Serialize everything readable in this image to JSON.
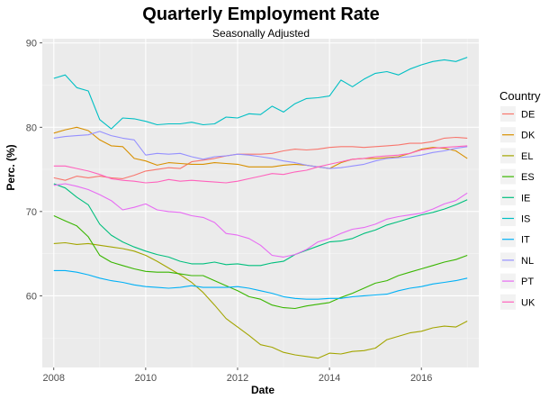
{
  "chart_data": {
    "type": "line",
    "title": "Quarterly Employment Rate",
    "subtitle": "Seasonally Adjusted",
    "xlabel": "Date",
    "ylabel": "Perc. (%)",
    "xlim": [
      2007.75,
      2017.25
    ],
    "ylim": [
      51.5,
      90.5
    ],
    "x_ticks": [
      2008,
      2010,
      2012,
      2014,
      2016
    ],
    "x_tick_labels": [
      "2008",
      "2010",
      "2012",
      "2014",
      "2016"
    ],
    "y_ticks": [
      60,
      70,
      80,
      90
    ],
    "y_tick_labels": [
      "60",
      "70",
      "80",
      "90"
    ],
    "grid": true,
    "legend": {
      "title": "Country",
      "position": "right"
    },
    "x": [
      2008.0,
      2008.25,
      2008.5,
      2008.75,
      2009.0,
      2009.25,
      2009.5,
      2009.75,
      2010.0,
      2010.25,
      2010.5,
      2010.75,
      2011.0,
      2011.25,
      2011.5,
      2011.75,
      2012.0,
      2012.25,
      2012.5,
      2012.75,
      2013.0,
      2013.25,
      2013.5,
      2013.75,
      2014.0,
      2014.25,
      2014.5,
      2014.75,
      2015.0,
      2015.25,
      2015.5,
      2015.75,
      2016.0,
      2016.25,
      2016.5,
      2016.75,
      2017.0
    ],
    "series": [
      {
        "name": "DE",
        "color": "#F8766D",
        "values": [
          74.0,
          73.7,
          74.2,
          74.0,
          74.2,
          74.0,
          73.9,
          74.3,
          74.8,
          75.0,
          75.2,
          75.1,
          75.9,
          76.1,
          76.3,
          76.6,
          76.8,
          76.8,
          76.8,
          76.9,
          77.2,
          77.4,
          77.3,
          77.4,
          77.6,
          77.7,
          77.7,
          77.6,
          77.7,
          77.8,
          77.9,
          78.1,
          78.1,
          78.3,
          78.7,
          78.8,
          78.7
        ]
      },
      {
        "name": "DK",
        "color": "#D89000",
        "values": [
          79.3,
          79.7,
          80.0,
          79.6,
          78.5,
          77.8,
          77.7,
          76.3,
          76.0,
          75.5,
          75.8,
          75.7,
          75.6,
          75.6,
          75.8,
          75.7,
          75.6,
          75.3,
          75.3,
          75.3,
          75.5,
          75.6,
          75.5,
          75.3,
          75.1,
          75.8,
          76.2,
          76.3,
          76.3,
          76.4,
          76.5,
          76.9,
          77.4,
          77.6,
          77.5,
          77.2,
          76.3
        ]
      },
      {
        "name": "EL",
        "color": "#A3A500",
        "values": [
          66.2,
          66.3,
          66.1,
          66.2,
          66.0,
          65.8,
          65.6,
          65.3,
          64.8,
          64.1,
          63.3,
          62.5,
          61.6,
          60.4,
          58.9,
          57.3,
          56.3,
          55.3,
          54.2,
          53.9,
          53.3,
          53.0,
          52.8,
          52.6,
          53.2,
          53.1,
          53.4,
          53.5,
          53.8,
          54.8,
          55.2,
          55.6,
          55.8,
          56.2,
          56.4,
          56.3,
          57.0
        ]
      },
      {
        "name": "ES",
        "color": "#39B600",
        "values": [
          69.5,
          68.9,
          68.3,
          67.0,
          64.8,
          64.0,
          63.6,
          63.2,
          62.9,
          62.8,
          62.8,
          62.6,
          62.4,
          62.4,
          61.8,
          61.2,
          60.6,
          59.9,
          59.6,
          58.9,
          58.6,
          58.5,
          58.8,
          59.0,
          59.2,
          59.8,
          60.3,
          60.9,
          61.5,
          61.8,
          62.4,
          62.8,
          63.2,
          63.6,
          64.0,
          64.3,
          64.8
        ]
      },
      {
        "name": "IE",
        "color": "#00BF7D",
        "values": [
          73.3,
          72.8,
          71.7,
          70.8,
          68.5,
          67.2,
          66.4,
          65.8,
          65.3,
          64.9,
          64.6,
          64.1,
          63.8,
          63.8,
          64.0,
          63.7,
          63.8,
          63.6,
          63.6,
          63.9,
          64.1,
          64.9,
          65.4,
          65.9,
          66.4,
          66.5,
          66.8,
          67.4,
          67.8,
          68.4,
          68.8,
          69.2,
          69.6,
          69.9,
          70.3,
          70.8,
          71.4
        ]
      },
      {
        "name": "IS",
        "color": "#00BFC4",
        "values": [
          85.8,
          86.2,
          84.7,
          84.3,
          80.9,
          79.8,
          81.1,
          81.0,
          80.7,
          80.3,
          80.4,
          80.4,
          80.6,
          80.3,
          80.4,
          81.2,
          81.1,
          81.6,
          81.5,
          82.5,
          81.8,
          82.8,
          83.4,
          83.5,
          83.7,
          85.6,
          84.8,
          85.7,
          86.4,
          86.6,
          86.2,
          86.9,
          87.4,
          87.8,
          88.0,
          87.8,
          88.3
        ]
      },
      {
        "name": "IT",
        "color": "#00B0F6",
        "values": [
          63.0,
          63.0,
          62.8,
          62.5,
          62.1,
          61.8,
          61.6,
          61.3,
          61.1,
          61.0,
          60.9,
          61.0,
          61.2,
          61.0,
          61.0,
          61.0,
          61.1,
          60.9,
          60.6,
          60.3,
          59.9,
          59.7,
          59.6,
          59.6,
          59.7,
          59.7,
          59.9,
          60.0,
          60.1,
          60.2,
          60.6,
          60.9,
          61.1,
          61.4,
          61.6,
          61.8,
          62.1
        ]
      },
      {
        "name": "NL",
        "color": "#9590FF",
        "values": [
          78.7,
          78.9,
          79.0,
          79.1,
          79.5,
          79.0,
          78.7,
          78.5,
          76.7,
          76.9,
          76.8,
          76.9,
          76.5,
          76.2,
          76.5,
          76.6,
          76.8,
          76.7,
          76.5,
          76.3,
          76.0,
          75.8,
          75.5,
          75.3,
          75.1,
          75.2,
          75.4,
          75.6,
          76.0,
          76.3,
          76.4,
          76.5,
          76.7,
          77.0,
          77.2,
          77.5,
          77.7
        ]
      },
      {
        "name": "PT",
        "color": "#E76BF3",
        "values": [
          73.1,
          73.3,
          73.0,
          72.6,
          72.0,
          71.3,
          70.2,
          70.5,
          70.9,
          70.2,
          70.0,
          69.9,
          69.5,
          69.3,
          68.7,
          67.4,
          67.2,
          66.8,
          66.0,
          64.8,
          64.6,
          64.9,
          65.5,
          66.4,
          66.8,
          67.4,
          67.9,
          68.1,
          68.5,
          69.1,
          69.4,
          69.6,
          69.8,
          70.3,
          70.9,
          71.3,
          72.2
        ]
      },
      {
        "name": "UK",
        "color": "#FF62BC",
        "values": [
          75.4,
          75.4,
          75.1,
          74.8,
          74.4,
          73.9,
          73.7,
          73.6,
          73.4,
          73.5,
          73.8,
          73.6,
          73.7,
          73.6,
          73.5,
          73.4,
          73.6,
          73.9,
          74.2,
          74.5,
          74.4,
          74.7,
          74.9,
          75.3,
          75.6,
          75.9,
          76.2,
          76.3,
          76.5,
          76.6,
          76.7,
          76.9,
          77.3,
          77.5,
          77.6,
          77.7,
          77.8
        ]
      }
    ]
  }
}
